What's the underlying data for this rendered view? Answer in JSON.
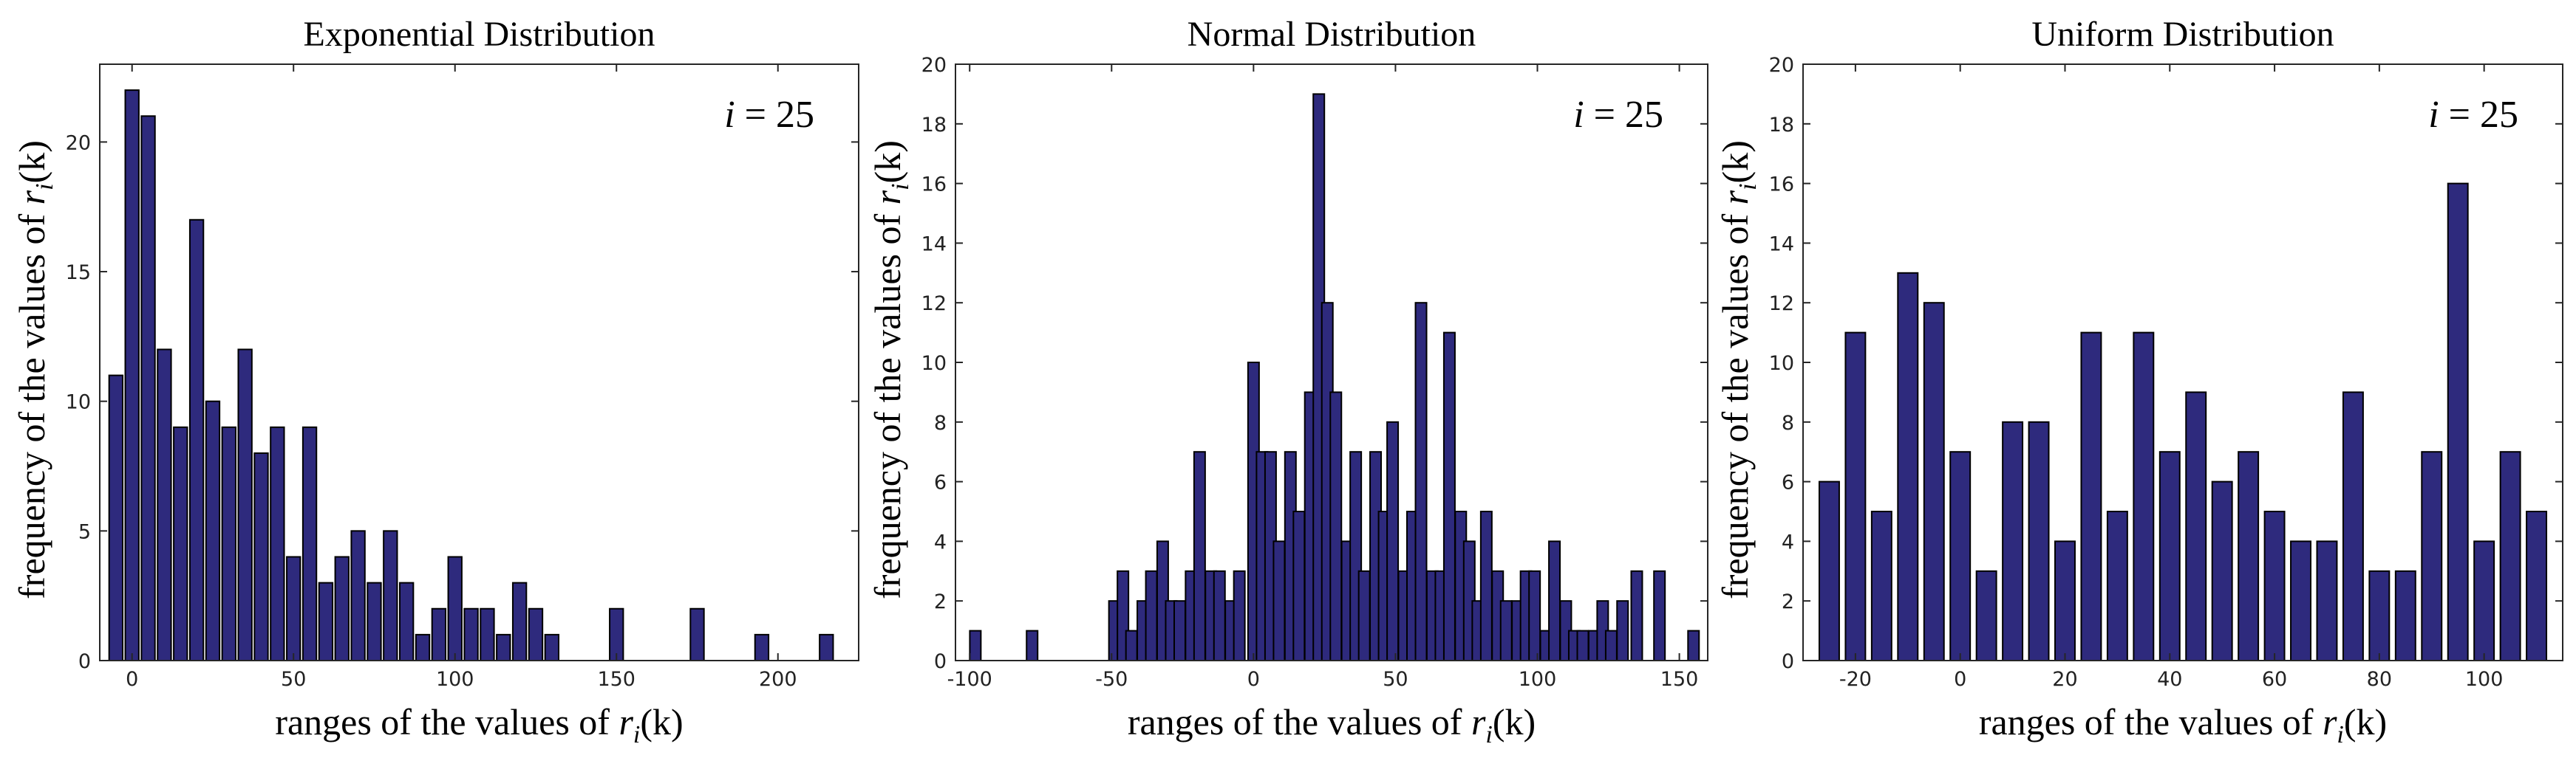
{
  "chart_data": [
    {
      "type": "bar",
      "title": "Exponential Distribution",
      "xlabel": {
        "prefix": "ranges of the values of ",
        "var": "r",
        "sub": "i",
        "arg": "(k)"
      },
      "ylabel": {
        "prefix": "frequency of the values of ",
        "var": "r",
        "sub": "i",
        "arg": "(k)"
      },
      "annotation": {
        "var": "i",
        "rest": " = 25"
      },
      "xlim": [
        -10,
        225
      ],
      "ylim": [
        0,
        23
      ],
      "xticks": [
        0,
        50,
        100,
        150,
        200
      ],
      "yticks": [
        0,
        5,
        10,
        15,
        20
      ],
      "bar_width": 4.2,
      "x": [
        -5,
        0,
        5,
        10,
        15,
        20,
        25,
        30,
        35,
        40,
        45,
        50,
        55,
        60,
        65,
        70,
        75,
        80,
        85,
        90,
        95,
        100,
        105,
        110,
        115,
        120,
        125,
        130,
        150,
        175,
        195,
        215
      ],
      "values": [
        11,
        22,
        21,
        12,
        9,
        17,
        10,
        9,
        12,
        8,
        9,
        4,
        9,
        3,
        4,
        5,
        3,
        5,
        3,
        1,
        2,
        4,
        2,
        2,
        1,
        3,
        2,
        1,
        2,
        2,
        1,
        1
      ]
    },
    {
      "type": "bar",
      "title": "Normal Distribution",
      "xlabel": {
        "prefix": "ranges of the values of ",
        "var": "r",
        "sub": "i",
        "arg": "(k)"
      },
      "ylabel": {
        "prefix": "frequency of the values of ",
        "var": "r",
        "sub": "i",
        "arg": "(k)"
      },
      "annotation": {
        "var": "i",
        "rest": " = 25"
      },
      "xlim": [
        -105,
        160
      ],
      "ylim": [
        0,
        20
      ],
      "xticks": [
        -100,
        -50,
        0,
        50,
        100,
        150
      ],
      "yticks": [
        0,
        2,
        4,
        6,
        8,
        10,
        12,
        14,
        16,
        18,
        20
      ],
      "bar_width": 3.9,
      "x": [
        -98,
        -78,
        -49,
        -46,
        -43,
        -39,
        -36,
        -32,
        -29,
        -26,
        -22,
        -19,
        -15,
        -12,
        -8,
        -5,
        0,
        3,
        6,
        9,
        13,
        16,
        20,
        23,
        26,
        29,
        33,
        36,
        39,
        43,
        46,
        49,
        53,
        56,
        59,
        63,
        66,
        69,
        73,
        76,
        79,
        82,
        86,
        89,
        93,
        96,
        99,
        103,
        106,
        110,
        113,
        116,
        120,
        123,
        126,
        130,
        135,
        143,
        155
      ],
      "values": [
        1,
        1,
        2,
        3,
        1,
        2,
        3,
        4,
        2,
        2,
        3,
        7,
        3,
        3,
        2,
        3,
        10,
        7,
        7,
        4,
        7,
        5,
        9,
        19,
        12,
        9,
        4,
        7,
        3,
        7,
        5,
        8,
        3,
        5,
        12,
        3,
        3,
        11,
        5,
        4,
        2,
        5,
        3,
        2,
        2,
        3,
        3,
        1,
        4,
        2,
        1,
        1,
        1,
        2,
        1,
        2,
        3,
        3,
        1
      ]
    },
    {
      "type": "bar",
      "title": "Uniform Distribution",
      "xlabel": {
        "prefix": "ranges of the values of ",
        "var": "r",
        "sub": "i",
        "arg": "(k)"
      },
      "ylabel": {
        "prefix": "frequency of the values of ",
        "var": "r",
        "sub": "i",
        "arg": "(k)"
      },
      "annotation": {
        "var": "i",
        "rest": " = 25"
      },
      "xlim": [
        -30,
        115
      ],
      "ylim": [
        0,
        20
      ],
      "xticks": [
        -20,
        0,
        20,
        40,
        60,
        80,
        100
      ],
      "yticks": [
        0,
        2,
        4,
        6,
        8,
        10,
        12,
        14,
        16,
        18,
        20
      ],
      "bar_width": 3.8,
      "x": [
        -25,
        -20,
        -15,
        -10,
        -5,
        0,
        5,
        10,
        15,
        20,
        25,
        30,
        35,
        40,
        45,
        50,
        55,
        60,
        65,
        70,
        75,
        80,
        85,
        90,
        95,
        100,
        105,
        110
      ],
      "values": [
        6,
        11,
        5,
        13,
        12,
        7,
        3,
        8,
        8,
        4,
        11,
        5,
        11,
        7,
        9,
        6,
        7,
        5,
        4,
        4,
        9,
        3,
        3,
        7,
        16,
        4,
        7,
        5
      ]
    }
  ],
  "colors": {
    "bar_fill": "#2e2a7d",
    "bar_edge": "#000000"
  }
}
